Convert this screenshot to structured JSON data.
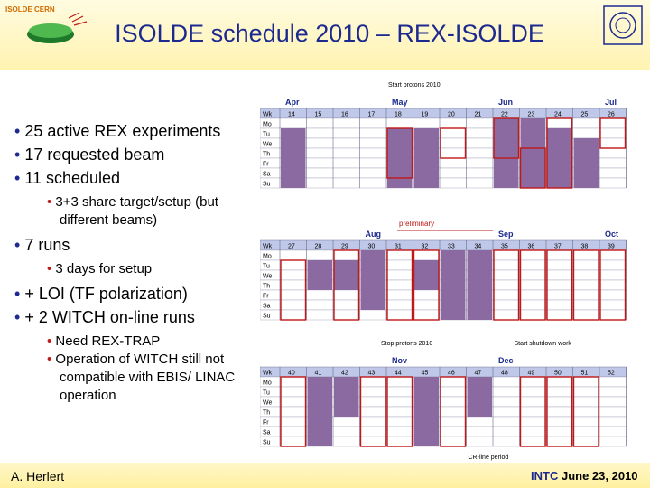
{
  "header": {
    "title": "ISOLDE schedule 2010 – REX-ISOLDE",
    "logo_left_text": "ISOLDE CERN"
  },
  "bullets": [
    {
      "level": 1,
      "text": "25 active REX experiments"
    },
    {
      "level": 1,
      "text": "17 requested beam"
    },
    {
      "level": 1,
      "text": "11 scheduled"
    },
    {
      "level": 2,
      "text": "3+3 share target/setup (but different beams)"
    },
    {
      "level": 1,
      "text": "7 runs"
    },
    {
      "level": 2,
      "text": "3 days for setup"
    },
    {
      "level": 1,
      "text": "+ LOI (TF polarization)"
    },
    {
      "level": 1,
      "text": "+ 2 WITCH on-line runs"
    },
    {
      "level": 2,
      "text": "Need REX-TRAP"
    },
    {
      "level": 2,
      "text": "Operation of WITCH still not compatible with EBIS/ LINAC operation"
    }
  ],
  "days": [
    "Mo",
    "Tu",
    "We",
    "Th",
    "Fr",
    "Sa",
    "Su"
  ],
  "wk_label": "Wk",
  "schedule_blocks": [
    {
      "annotation": "Start protons 2010",
      "months": [
        {
          "label": "Apr",
          "col": 0
        },
        {
          "label": "May",
          "col": 4
        },
        {
          "label": "Jun",
          "col": 8
        },
        {
          "label": "Jul",
          "col": 12
        }
      ],
      "weeks": [
        "14",
        "15",
        "16",
        "17",
        "18",
        "19",
        "20",
        "21",
        "22",
        "23",
        "24",
        "25",
        "26"
      ]
    },
    {
      "annotation": "preliminary",
      "months": [
        {
          "label": "Aug",
          "col": 3
        },
        {
          "label": "Sep",
          "col": 8
        },
        {
          "label": "Oct",
          "col": 12
        }
      ],
      "weeks": [
        "27",
        "28",
        "29",
        "30",
        "31",
        "32",
        "33",
        "34",
        "35",
        "36",
        "37",
        "38",
        "39"
      ]
    },
    {
      "annotation_left": "Stop protons 2010",
      "annotation_right": "Start shutdown work",
      "annotation_bottom": "CR-line period",
      "months": [
        {
          "label": "Nov",
          "col": 4
        },
        {
          "label": "Dec",
          "col": 8
        }
      ],
      "weeks": [
        "40",
        "41",
        "42",
        "43",
        "44",
        "45",
        "46",
        "47",
        "48",
        "49",
        "50",
        "51",
        "52"
      ]
    }
  ],
  "colors": {
    "title": "#1c2a8f",
    "run_fill": "#8a6aa0",
    "run_outline": "#c01818",
    "header_row": "#bfc8e8"
  },
  "footer": {
    "author": "A. Herlert",
    "org": "INTC",
    "date": "June 23, 2010"
  }
}
